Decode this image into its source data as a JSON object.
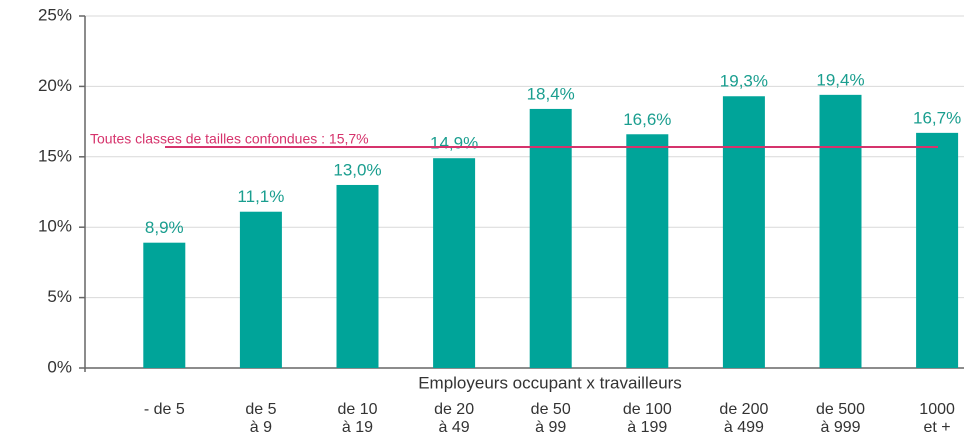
{
  "chart_data": {
    "type": "bar",
    "x_label": "Employeurs occupant x travailleurs",
    "categories": [
      [
        "- de 5"
      ],
      [
        "de 5",
        "à 9"
      ],
      [
        "de 10",
        "à 19"
      ],
      [
        "de 20",
        "à 49"
      ],
      [
        "de 50",
        "à 99"
      ],
      [
        "de 100",
        "à 199"
      ],
      [
        "de 200",
        "à 499"
      ],
      [
        "de 500",
        "à 999"
      ],
      [
        "1000",
        "et +"
      ]
    ],
    "values": [
      8.9,
      11.1,
      13.0,
      14.9,
      18.4,
      16.6,
      19.3,
      19.4,
      16.7
    ],
    "value_labels": [
      "8,9%",
      "11,1%",
      "13,0%",
      "14,9%",
      "18,4%",
      "16,6%",
      "19,3%",
      "19,4%",
      "16,7%"
    ],
    "color": "#00a499",
    "ylim": [
      0,
      25
    ],
    "yticks": [
      {
        "value": 0,
        "label": "0%"
      },
      {
        "value": 5,
        "label": "5%"
      },
      {
        "value": 10,
        "label": "10%"
      },
      {
        "value": 15,
        "label": "15%"
      },
      {
        "value": 20,
        "label": "20%"
      },
      {
        "value": 25,
        "label": "25%"
      }
    ],
    "grid": true,
    "reference_line": {
      "value": 15.7,
      "label": "Toutes classes de tailles confondues : 15,7%",
      "color": "#d6336c"
    }
  }
}
